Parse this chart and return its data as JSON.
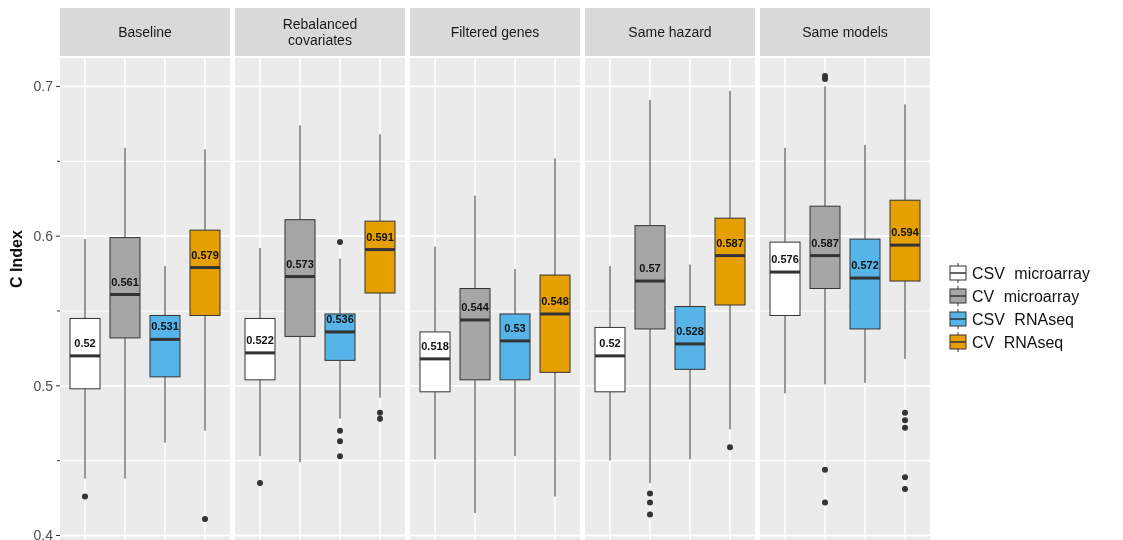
{
  "chart_data": {
    "type": "box",
    "ylabel": "C Index",
    "categories": [
      "Baseline",
      "Rebalanced covariates",
      "Filtered genes",
      "Same hazard",
      "Same models"
    ],
    "ylim": [
      0.397,
      0.719
    ],
    "yticks": [
      0.4,
      {
        "value": 0.45,
        "label": null
      },
      0.5,
      {
        "value": 0.55,
        "label": null
      },
      0.6,
      {
        "value": 0.65,
        "label": null
      },
      0.7
    ],
    "grid": true,
    "legend": "right",
    "series": [
      {
        "name": "CSV microarray",
        "color": "#ffffff",
        "value_labels": [
          "0.52",
          "0.522",
          "0.518",
          "0.52",
          "0.576"
        ],
        "boxes": [
          {
            "low": 0.438,
            "q1": 0.498,
            "median": 0.52,
            "q3": 0.545,
            "high": 0.598,
            "outliers": [
              0.426
            ]
          },
          {
            "low": 0.453,
            "q1": 0.504,
            "median": 0.522,
            "q3": 0.545,
            "high": 0.592,
            "outliers": [
              0.435
            ]
          },
          {
            "low": 0.451,
            "q1": 0.496,
            "median": 0.518,
            "q3": 0.536,
            "high": 0.593
          },
          {
            "low": 0.45,
            "q1": 0.496,
            "median": 0.52,
            "q3": 0.539,
            "high": 0.58
          },
          {
            "low": 0.495,
            "q1": 0.547,
            "median": 0.576,
            "q3": 0.596,
            "high": 0.659
          }
        ]
      },
      {
        "name": "CV microarray",
        "color": "#a6a6a6",
        "value_labels": [
          "0.561",
          "0.573",
          "0.544",
          "0.57",
          "0.587"
        ],
        "boxes": [
          {
            "low": 0.438,
            "q1": 0.532,
            "median": 0.561,
            "q3": 0.599,
            "high": 0.659
          },
          {
            "low": 0.449,
            "q1": 0.533,
            "median": 0.573,
            "q3": 0.611,
            "high": 0.674
          },
          {
            "low": 0.415,
            "q1": 0.504,
            "median": 0.544,
            "q3": 0.565,
            "high": 0.627
          },
          {
            "low": 0.435,
            "q1": 0.538,
            "median": 0.57,
            "q3": 0.607,
            "high": 0.691,
            "outliers": [
              0.428,
              0.422,
              0.414
            ]
          },
          {
            "low": 0.501,
            "q1": 0.565,
            "median": 0.587,
            "q3": 0.62,
            "high": 0.7,
            "outliers": [
              0.707,
              0.705,
              0.444,
              0.422
            ]
          }
        ]
      },
      {
        "name": "CSV RNAseq",
        "color": "#56b4e9",
        "value_labels": [
          "0.531",
          "0.536",
          "0.53",
          "0.528",
          "0.572"
        ],
        "boxes": [
          {
            "low": 0.462,
            "q1": 0.506,
            "median": 0.531,
            "q3": 0.547,
            "high": 0.58
          },
          {
            "low": 0.478,
            "q1": 0.517,
            "median": 0.536,
            "q3": 0.548,
            "high": 0.585,
            "outliers": [
              0.596,
              0.47,
              0.463,
              0.453
            ]
          },
          {
            "low": 0.453,
            "q1": 0.504,
            "median": 0.53,
            "q3": 0.548,
            "high": 0.578
          },
          {
            "low": 0.451,
            "q1": 0.511,
            "median": 0.528,
            "q3": 0.553,
            "high": 0.581
          },
          {
            "low": 0.502,
            "q1": 0.538,
            "median": 0.572,
            "q3": 0.598,
            "high": 0.661
          }
        ]
      },
      {
        "name": "CV RNAseq",
        "color": "#e69f00",
        "value_labels": [
          "0.579",
          "0.591",
          "0.548",
          "0.587",
          "0.594"
        ],
        "boxes": [
          {
            "low": 0.47,
            "q1": 0.547,
            "median": 0.579,
            "q3": 0.604,
            "high": 0.658,
            "outliers": [
              0.411
            ]
          },
          {
            "low": 0.492,
            "q1": 0.562,
            "median": 0.591,
            "q3": 0.61,
            "high": 0.668,
            "outliers": [
              0.482,
              0.478
            ]
          },
          {
            "low": 0.426,
            "q1": 0.509,
            "median": 0.548,
            "q3": 0.574,
            "high": 0.652
          },
          {
            "low": 0.471,
            "q1": 0.554,
            "median": 0.587,
            "q3": 0.612,
            "high": 0.697,
            "outliers": [
              0.459
            ]
          },
          {
            "low": 0.518,
            "q1": 0.57,
            "median": 0.594,
            "q3": 0.624,
            "high": 0.688,
            "outliers": [
              0.482,
              0.477,
              0.472,
              0.439,
              0.431
            ]
          }
        ]
      }
    ]
  }
}
